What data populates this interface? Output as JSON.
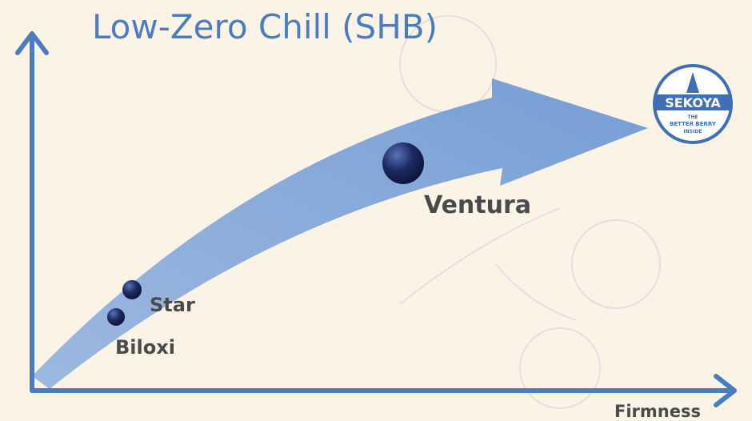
{
  "title": "Low-Zero Chill (SHB)",
  "x_axis_label": "Firmness",
  "varieties": [
    {
      "label": "Star"
    },
    {
      "label": "Biloxi"
    },
    {
      "label": "Ventura"
    }
  ],
  "logo": {
    "name": "SEKOYA",
    "tagline": [
      "THE",
      "BETTER BERRY",
      "INSIDE"
    ]
  }
}
